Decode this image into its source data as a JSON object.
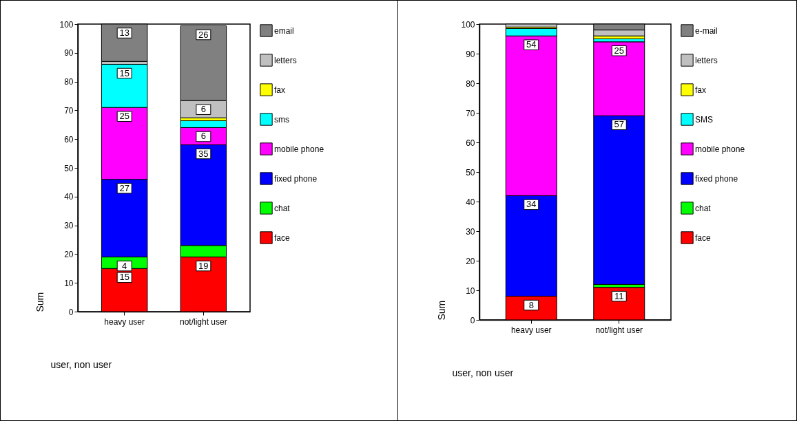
{
  "chart_data": [
    {
      "type": "bar",
      "stacked": true,
      "categories": [
        "heavy user",
        "not/light user"
      ],
      "xlabel": "user, non user",
      "ylabel": "Sum",
      "ylim": [
        0,
        100
      ],
      "yticks": [
        0,
        10,
        20,
        30,
        40,
        50,
        60,
        70,
        80,
        90,
        100
      ],
      "legend": "right",
      "series": [
        {
          "name": "face",
          "color": "#ff0000",
          "values": [
            15,
            19
          ],
          "value_labels": [
            "15",
            "19"
          ]
        },
        {
          "name": "chat",
          "color": "#00ff00",
          "values": [
            4,
            4
          ],
          "value_labels": [
            "4",
            null
          ]
        },
        {
          "name": "fixed phone",
          "color": "#0000ff",
          "values": [
            27,
            35
          ],
          "value_labels": [
            "27",
            "35"
          ]
        },
        {
          "name": "mobile phone",
          "color": "#ff00ff",
          "values": [
            25,
            6
          ],
          "value_labels": [
            "25",
            "6"
          ]
        },
        {
          "name": "sms",
          "color": "#00ffff",
          "values": [
            15,
            2.4
          ],
          "value_labels": [
            "15",
            null
          ]
        },
        {
          "name": "fax",
          "color": "#ffff00",
          "values": [
            null,
            1
          ],
          "value_labels": [
            null,
            null
          ]
        },
        {
          "name": "letters",
          "color": "#c0c0c0",
          "values": [
            1,
            6
          ],
          "value_labels": [
            null,
            "6"
          ]
        },
        {
          "name": "email",
          "color": "#808080",
          "values": [
            13,
            26
          ],
          "value_labels": [
            "13",
            "26"
          ]
        }
      ]
    },
    {
      "type": "bar",
      "stacked": true,
      "categories": [
        "heavy user",
        "not/light user"
      ],
      "xlabel": "user, non user",
      "ylabel": "Sum",
      "ylim": [
        0,
        100
      ],
      "yticks": [
        0,
        10,
        20,
        30,
        40,
        50,
        60,
        70,
        80,
        90,
        100
      ],
      "legend": "right",
      "series": [
        {
          "name": "face",
          "color": "#ff0000",
          "values": [
            8,
            11
          ],
          "value_labels": [
            "8",
            "11"
          ]
        },
        {
          "name": "chat",
          "color": "#00ff00",
          "values": [
            null,
            1
          ],
          "value_labels": [
            null,
            null
          ]
        },
        {
          "name": "fixed phone",
          "color": "#0000ff",
          "values": [
            34,
            57
          ],
          "value_labels": [
            "34",
            "57"
          ]
        },
        {
          "name": "mobile phone",
          "color": "#ff00ff",
          "values": [
            54,
            25
          ],
          "value_labels": [
            "54",
            "25"
          ]
        },
        {
          "name": "SMS",
          "color": "#00ffff",
          "values": [
            2.5,
            1
          ],
          "value_labels": [
            null,
            null
          ]
        },
        {
          "name": "fax",
          "color": "#ffff00",
          "values": [
            0.5,
            1
          ],
          "value_labels": [
            null,
            null
          ]
        },
        {
          "name": "letters",
          "color": "#c0c0c0",
          "values": [
            1,
            2
          ],
          "value_labels": [
            null,
            null
          ]
        },
        {
          "name": "e-mail",
          "color": "#808080",
          "values": [
            null,
            2
          ],
          "value_labels": [
            null,
            null
          ]
        }
      ]
    }
  ]
}
